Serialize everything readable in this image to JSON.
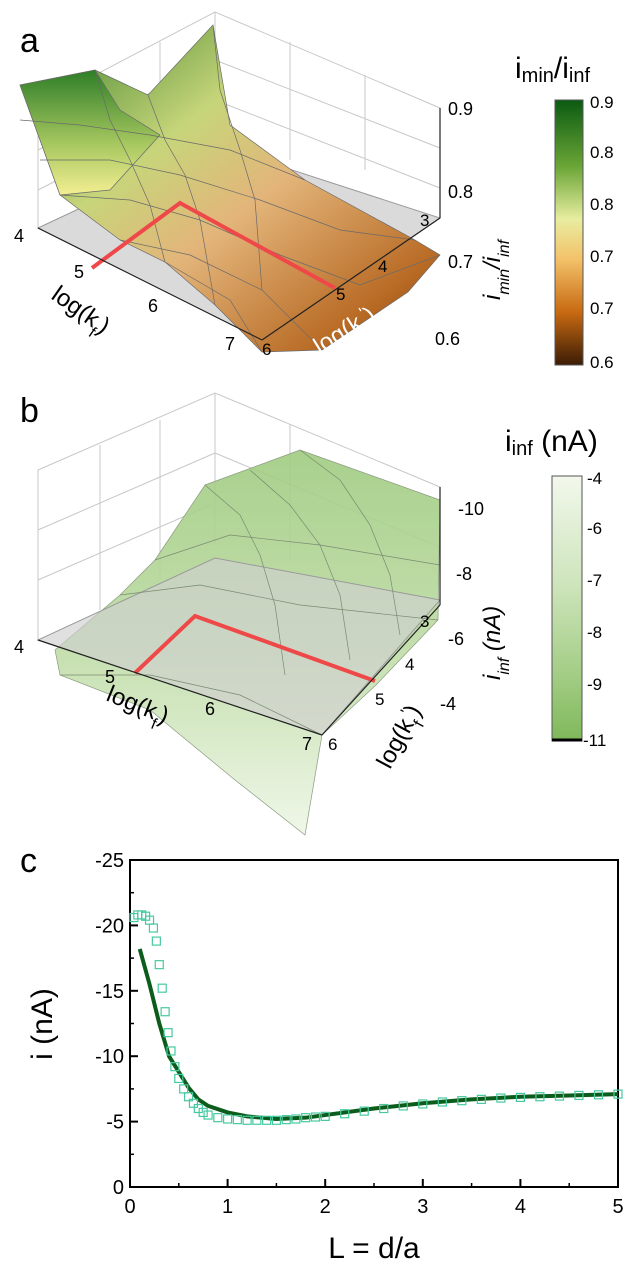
{
  "panels": {
    "a": {
      "letter": "a"
    },
    "b": {
      "letter": "b"
    },
    "c": {
      "letter": "c"
    }
  },
  "chart_data": [
    {
      "type": "surface",
      "panel": "a",
      "z_label_main": "i",
      "z_label_sub1": "min",
      "z_label_mid": "/i",
      "z_label_sub2": "inf",
      "x_label_main": "log(k",
      "x_label_sub": "f",
      "x_label_end": ")",
      "y_label_main": "log(k",
      "y_label_sub": "f",
      "y_label_sup": "'",
      "y_label_end": ")",
      "x_ticks": [
        "4",
        "5",
        "6",
        "7"
      ],
      "y_ticks": [
        "3",
        "4",
        "5",
        "6"
      ],
      "z_ticks": [
        "0.9",
        "0.8",
        "0.7",
        "0.6"
      ],
      "colorbar": {
        "title_main": "i",
        "title_sub1": "min",
        "title_mid": "/i",
        "title_sub2": "inf",
        "ticks": [
          "0.9",
          "0.8",
          "0.8",
          "0.7",
          "0.7",
          "0.6"
        ],
        "colors": [
          "#0b5a12",
          "#5a9a2c",
          "#b7d66a",
          "#f4f1a0",
          "#f2b34a",
          "#c86a12",
          "#3b1c05"
        ]
      }
    },
    {
      "type": "surface",
      "panel": "b",
      "z_label_main": "i",
      "z_label_sub": "inf",
      "z_label_end": " (nA)",
      "x_label_main": "log(k",
      "x_label_sub": "f",
      "x_label_end": ")",
      "y_label_main": "log(k",
      "y_label_sub": "f",
      "y_label_sup": "'",
      "y_label_end": ")",
      "x_ticks": [
        "4",
        "5",
        "6",
        "7"
      ],
      "y_ticks": [
        "3",
        "4",
        "5",
        "6"
      ],
      "z_ticks": [
        "-10",
        "-8",
        "-6",
        "-4"
      ],
      "colorbar": {
        "title_main": "i",
        "title_sub": "inf",
        "title_end": " (nA)",
        "ticks": [
          "-4",
          "-6",
          "-7",
          "-8",
          "-9",
          "-11"
        ],
        "colors": [
          "#f2f8ec",
          "#cfe5bd",
          "#9fcb80",
          "#7fb85a"
        ]
      }
    },
    {
      "type": "line",
      "panel": "c",
      "xlabel": "L = d/a",
      "ylabel": "i (nA)",
      "xlim": [
        0,
        5
      ],
      "ylim": [
        0,
        -25
      ],
      "x_ticks": [
        0,
        1,
        2,
        3,
        4,
        5
      ],
      "y_ticks": [
        0,
        -5,
        -10,
        -15,
        -20,
        -25
      ],
      "series": [
        {
          "style": "line",
          "color": "#0c5d1c",
          "x": [
            0.1,
            0.2,
            0.3,
            0.4,
            0.5,
            0.6,
            0.7,
            0.8,
            1.0,
            1.2,
            1.5,
            1.8,
            2.0,
            2.5,
            3.0,
            3.5,
            4.0,
            4.5,
            5.0
          ],
          "y": [
            -18.2,
            -15.5,
            -12.5,
            -10.0,
            -8.8,
            -7.6,
            -6.7,
            -6.2,
            -5.7,
            -5.4,
            -5.2,
            -5.3,
            -5.5,
            -6.0,
            -6.4,
            -6.7,
            -6.9,
            -7.0,
            -7.1
          ]
        },
        {
          "style": "markers",
          "color": "#45c9a0",
          "x": [
            0.04,
            0.08,
            0.12,
            0.16,
            0.2,
            0.24,
            0.27,
            0.3,
            0.33,
            0.36,
            0.39,
            0.42,
            0.46,
            0.5,
            0.55,
            0.6,
            0.65,
            0.7,
            0.75,
            0.8,
            0.9,
            1.0,
            1.1,
            1.2,
            1.3,
            1.4,
            1.5,
            1.6,
            1.7,
            1.8,
            1.9,
            2.0,
            2.2,
            2.4,
            2.6,
            2.8,
            3.0,
            3.2,
            3.4,
            3.6,
            3.8,
            4.0,
            4.2,
            4.4,
            4.6,
            4.8,
            5.0
          ],
          "y": [
            -20.6,
            -20.8,
            -20.8,
            -20.7,
            -20.4,
            -19.8,
            -18.8,
            -17.0,
            -15.2,
            -13.4,
            -11.8,
            -10.4,
            -9.2,
            -8.3,
            -7.5,
            -6.9,
            -6.4,
            -6.0,
            -5.7,
            -5.5,
            -5.3,
            -5.2,
            -5.15,
            -5.1,
            -5.1,
            -5.1,
            -5.1,
            -5.15,
            -5.2,
            -5.3,
            -5.35,
            -5.4,
            -5.6,
            -5.8,
            -6.0,
            -6.2,
            -6.35,
            -6.5,
            -6.6,
            -6.7,
            -6.8,
            -6.85,
            -6.9,
            -6.95,
            -7.0,
            -7.05,
            -7.1
          ]
        }
      ]
    }
  ]
}
